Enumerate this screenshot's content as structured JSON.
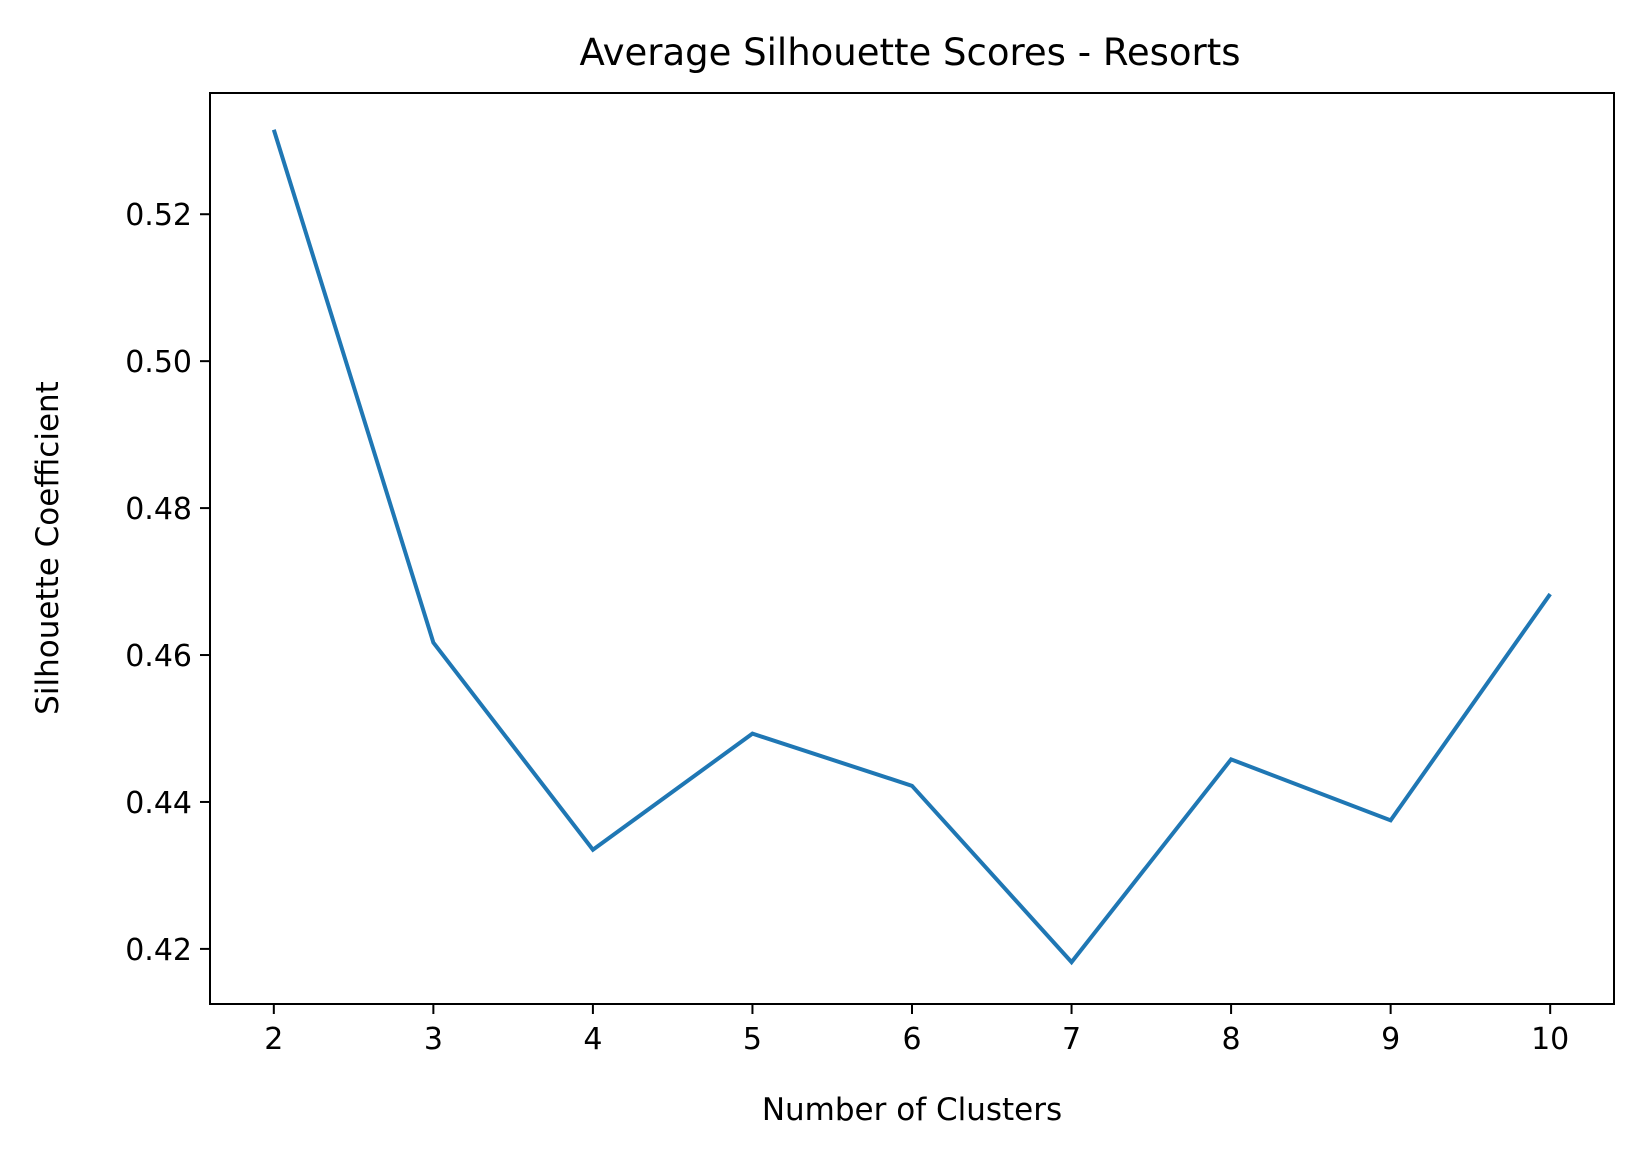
{
  "chart_data": {
    "type": "line",
    "title": "Average Silhouette Scores - Resorts",
    "xlabel": "Number of Clusters",
    "ylabel": "Silhouette Coefficient",
    "x": [
      2,
      3,
      4,
      5,
      6,
      7,
      8,
      9,
      10
    ],
    "xticks": [
      "2",
      "3",
      "4",
      "5",
      "6",
      "7",
      "8",
      "9",
      "10"
    ],
    "yticks": [
      "0.42",
      "0.44",
      "0.46",
      "0.48",
      "0.50",
      "0.52"
    ],
    "ytick_values": [
      0.42,
      0.44,
      0.46,
      0.48,
      0.5,
      0.52
    ],
    "xlim": [
      1.6,
      10.4
    ],
    "ylim": [
      0.4125,
      0.5365
    ],
    "grid": false,
    "series": [
      {
        "color": "#1f77b4",
        "values": [
          0.5315,
          0.4617,
          0.4335,
          0.4493,
          0.4422,
          0.4182,
          0.4458,
          0.4375,
          0.4683
        ]
      }
    ]
  }
}
